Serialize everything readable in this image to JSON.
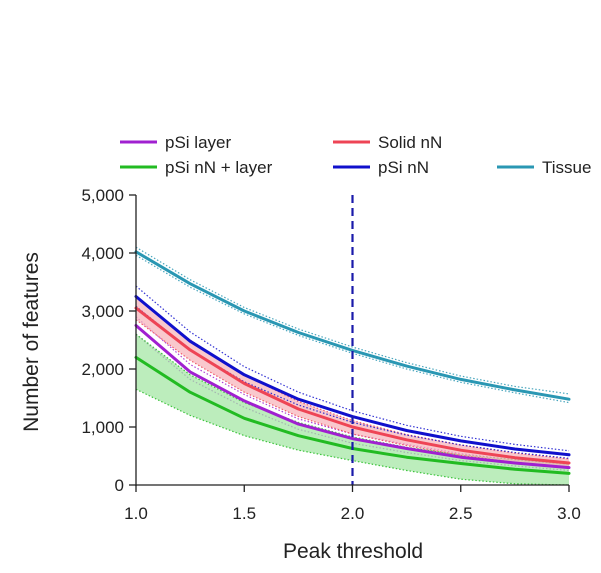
{
  "chart_data": {
    "type": "line",
    "xlabel": "Peak threshold",
    "ylabel": "Number of features",
    "xlim": [
      1.0,
      3.0
    ],
    "ylim": [
      0,
      5000
    ],
    "x_ticks": [
      "1.0",
      "1.5",
      "2.0",
      "2.5",
      "3.0"
    ],
    "y_ticks": [
      "0",
      "1,000",
      "2,000",
      "3,000",
      "4,000",
      "5,000"
    ],
    "x": [
      1.0,
      1.25,
      1.5,
      1.75,
      2.0,
      2.25,
      2.5,
      2.75,
      3.0
    ],
    "reference_line": {
      "x": 2.0,
      "style": "dashed",
      "color": "#1a1aaa"
    },
    "legend_placement": "top",
    "series": [
      {
        "name": "pSi layer",
        "color": "#a020d0",
        "band_style": "dotted",
        "values": [
          2750,
          1950,
          1450,
          1050,
          800,
          630,
          480,
          380,
          300
        ],
        "lower": [
          2600,
          1820,
          1340,
          960,
          720,
          560,
          420,
          330,
          250
        ],
        "upper": [
          2900,
          2080,
          1560,
          1140,
          880,
          700,
          540,
          430,
          350
        ]
      },
      {
        "name": "pSi nN + layer",
        "color": "#22bb22",
        "band_color": "#9fe59f",
        "band_style": "filled",
        "values": [
          2200,
          1600,
          1150,
          850,
          630,
          480,
          370,
          270,
          200
        ],
        "lower": [
          1650,
          1200,
          850,
          600,
          420,
          250,
          100,
          20,
          0
        ],
        "upper": [
          2600,
          1900,
          1420,
          1080,
          830,
          650,
          520,
          440,
          360
        ]
      },
      {
        "name": "Solid nN",
        "color": "#ee4455",
        "band_color": "#f6b0b8",
        "band_style": "filled",
        "values": [
          3050,
          2330,
          1750,
          1310,
          1000,
          780,
          600,
          470,
          380
        ],
        "lower": [
          2850,
          2150,
          1600,
          1180,
          880,
          680,
          510,
          390,
          310
        ],
        "upper": [
          3250,
          2500,
          1900,
          1440,
          1110,
          870,
          690,
          550,
          450
        ]
      },
      {
        "name": "pSi nN",
        "color": "#1010cc",
        "band_style": "dotted",
        "values": [
          3250,
          2480,
          1900,
          1480,
          1180,
          940,
          760,
          620,
          520
        ],
        "lower": [
          3080,
          2330,
          1780,
          1380,
          1080,
          860,
          690,
          560,
          460
        ],
        "upper": [
          3430,
          2640,
          2040,
          1600,
          1280,
          1030,
          840,
          700,
          590
        ]
      },
      {
        "name": "Tissue",
        "color": "#2a97b3",
        "band_style": "dotted",
        "values": [
          4020,
          3470,
          3000,
          2630,
          2320,
          2050,
          1820,
          1640,
          1480
        ],
        "lower": [
          3960,
          3410,
          2950,
          2580,
          2270,
          2000,
          1770,
          1590,
          1420
        ],
        "upper": [
          4100,
          3540,
          3060,
          2690,
          2380,
          2110,
          1880,
          1700,
          1570
        ]
      }
    ]
  }
}
